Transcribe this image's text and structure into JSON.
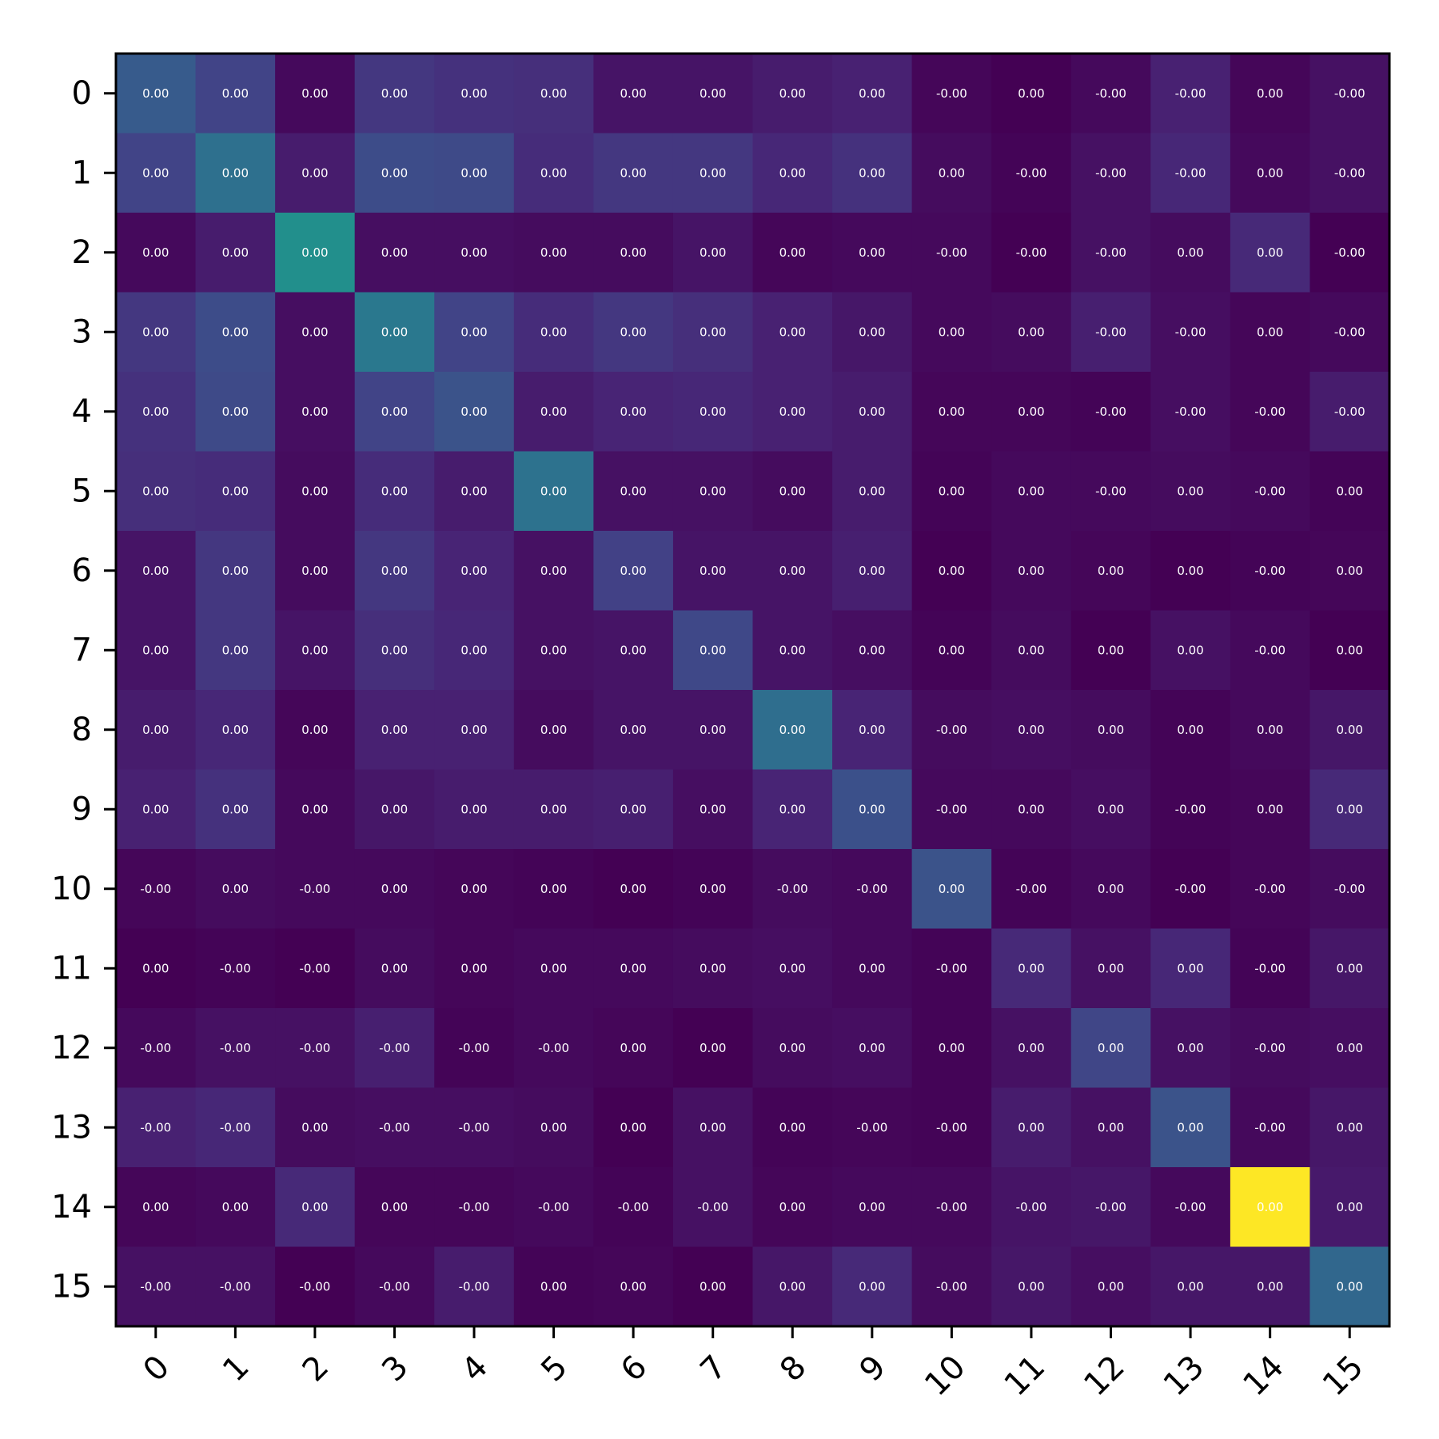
{
  "chart_data": {
    "type": "heatmap",
    "title": "",
    "xlabel": "",
    "ylabel": "",
    "x_ticks": [
      "0",
      "1",
      "2",
      "3",
      "4",
      "5",
      "6",
      "7",
      "8",
      "9",
      "10",
      "11",
      "12",
      "13",
      "14",
      "15"
    ],
    "y_ticks": [
      "0",
      "1",
      "2",
      "3",
      "4",
      "5",
      "6",
      "7",
      "8",
      "9",
      "10",
      "11",
      "12",
      "13",
      "14",
      "15"
    ],
    "colormap": "viridis",
    "color_intensity": [
      [
        0.36,
        0.25,
        0.03,
        0.2,
        0.18,
        0.17,
        0.07,
        0.07,
        0.1,
        0.12,
        0.02,
        0.0,
        0.03,
        0.12,
        0.02,
        0.06
      ],
      [
        0.25,
        0.46,
        0.1,
        0.29,
        0.28,
        0.16,
        0.2,
        0.2,
        0.14,
        0.18,
        0.04,
        0.01,
        0.06,
        0.14,
        0.03,
        0.06
      ],
      [
        0.03,
        0.1,
        0.62,
        0.05,
        0.05,
        0.04,
        0.04,
        0.07,
        0.02,
        0.03,
        0.03,
        0.0,
        0.06,
        0.04,
        0.15,
        0.0
      ],
      [
        0.2,
        0.29,
        0.05,
        0.5,
        0.25,
        0.16,
        0.2,
        0.17,
        0.12,
        0.08,
        0.03,
        0.04,
        0.11,
        0.05,
        0.02,
        0.03
      ],
      [
        0.18,
        0.28,
        0.05,
        0.25,
        0.32,
        0.1,
        0.13,
        0.14,
        0.12,
        0.1,
        0.02,
        0.02,
        0.01,
        0.05,
        0.02,
        0.1
      ],
      [
        0.17,
        0.16,
        0.04,
        0.16,
        0.1,
        0.47,
        0.06,
        0.06,
        0.04,
        0.1,
        0.01,
        0.03,
        0.03,
        0.04,
        0.03,
        0.01
      ],
      [
        0.07,
        0.2,
        0.04,
        0.2,
        0.13,
        0.06,
        0.24,
        0.07,
        0.07,
        0.11,
        0.0,
        0.03,
        0.02,
        0.0,
        0.01,
        0.02
      ],
      [
        0.07,
        0.2,
        0.07,
        0.17,
        0.14,
        0.06,
        0.07,
        0.27,
        0.07,
        0.05,
        0.01,
        0.04,
        0.0,
        0.06,
        0.03,
        0.0
      ],
      [
        0.1,
        0.14,
        0.02,
        0.12,
        0.12,
        0.04,
        0.07,
        0.07,
        0.45,
        0.13,
        0.04,
        0.05,
        0.04,
        0.01,
        0.03,
        0.08
      ],
      [
        0.12,
        0.18,
        0.03,
        0.08,
        0.1,
        0.1,
        0.11,
        0.05,
        0.13,
        0.31,
        0.03,
        0.03,
        0.05,
        0.01,
        0.02,
        0.15
      ],
      [
        0.02,
        0.04,
        0.03,
        0.03,
        0.02,
        0.01,
        0.0,
        0.01,
        0.04,
        0.03,
        0.32,
        0.01,
        0.03,
        0.0,
        0.02,
        0.04
      ],
      [
        0.0,
        0.01,
        0.0,
        0.04,
        0.02,
        0.03,
        0.03,
        0.04,
        0.05,
        0.03,
        0.01,
        0.15,
        0.06,
        0.14,
        0.01,
        0.08
      ],
      [
        0.03,
        0.06,
        0.06,
        0.11,
        0.01,
        0.03,
        0.02,
        0.0,
        0.04,
        0.05,
        0.01,
        0.06,
        0.26,
        0.06,
        0.04,
        0.05
      ],
      [
        0.12,
        0.14,
        0.04,
        0.05,
        0.05,
        0.04,
        0.0,
        0.06,
        0.01,
        0.02,
        0.01,
        0.1,
        0.06,
        0.32,
        0.03,
        0.08
      ],
      [
        0.02,
        0.03,
        0.15,
        0.02,
        0.02,
        0.03,
        0.01,
        0.06,
        0.02,
        0.03,
        0.03,
        0.07,
        0.08,
        0.03,
        1.0,
        0.09
      ],
      [
        0.06,
        0.06,
        0.0,
        0.03,
        0.1,
        0.01,
        0.02,
        0.0,
        0.08,
        0.15,
        0.04,
        0.08,
        0.05,
        0.08,
        0.08,
        0.42
      ]
    ],
    "cell_labels": [
      [
        "0.00",
        "0.00",
        "0.00",
        "0.00",
        "0.00",
        "0.00",
        "0.00",
        "0.00",
        "0.00",
        "0.00",
        "-0.00",
        "0.00",
        "-0.00",
        "-0.00",
        "0.00",
        "-0.00"
      ],
      [
        "0.00",
        "0.00",
        "0.00",
        "0.00",
        "0.00",
        "0.00",
        "0.00",
        "0.00",
        "0.00",
        "0.00",
        "0.00",
        "-0.00",
        "-0.00",
        "-0.00",
        "0.00",
        "-0.00"
      ],
      [
        "0.00",
        "0.00",
        "0.00",
        "0.00",
        "0.00",
        "0.00",
        "0.00",
        "0.00",
        "0.00",
        "0.00",
        "-0.00",
        "-0.00",
        "-0.00",
        "0.00",
        "0.00",
        "-0.00"
      ],
      [
        "0.00",
        "0.00",
        "0.00",
        "0.00",
        "0.00",
        "0.00",
        "0.00",
        "0.00",
        "0.00",
        "0.00",
        "0.00",
        "0.00",
        "-0.00",
        "-0.00",
        "0.00",
        "-0.00"
      ],
      [
        "0.00",
        "0.00",
        "0.00",
        "0.00",
        "0.00",
        "0.00",
        "0.00",
        "0.00",
        "0.00",
        "0.00",
        "0.00",
        "0.00",
        "-0.00",
        "-0.00",
        "-0.00",
        "-0.00"
      ],
      [
        "0.00",
        "0.00",
        "0.00",
        "0.00",
        "0.00",
        "0.00",
        "0.00",
        "0.00",
        "0.00",
        "0.00",
        "0.00",
        "0.00",
        "-0.00",
        "0.00",
        "-0.00",
        "0.00"
      ],
      [
        "0.00",
        "0.00",
        "0.00",
        "0.00",
        "0.00",
        "0.00",
        "0.00",
        "0.00",
        "0.00",
        "0.00",
        "0.00",
        "0.00",
        "0.00",
        "0.00",
        "-0.00",
        "0.00"
      ],
      [
        "0.00",
        "0.00",
        "0.00",
        "0.00",
        "0.00",
        "0.00",
        "0.00",
        "0.00",
        "0.00",
        "0.00",
        "0.00",
        "0.00",
        "0.00",
        "0.00",
        "-0.00",
        "0.00"
      ],
      [
        "0.00",
        "0.00",
        "0.00",
        "0.00",
        "0.00",
        "0.00",
        "0.00",
        "0.00",
        "0.00",
        "0.00",
        "-0.00",
        "0.00",
        "0.00",
        "0.00",
        "0.00",
        "0.00"
      ],
      [
        "0.00",
        "0.00",
        "0.00",
        "0.00",
        "0.00",
        "0.00",
        "0.00",
        "0.00",
        "0.00",
        "0.00",
        "-0.00",
        "0.00",
        "0.00",
        "-0.00",
        "0.00",
        "0.00"
      ],
      [
        "-0.00",
        "0.00",
        "-0.00",
        "0.00",
        "0.00",
        "0.00",
        "0.00",
        "0.00",
        "-0.00",
        "-0.00",
        "0.00",
        "-0.00",
        "0.00",
        "-0.00",
        "-0.00",
        "-0.00"
      ],
      [
        "0.00",
        "-0.00",
        "-0.00",
        "0.00",
        "0.00",
        "0.00",
        "0.00",
        "0.00",
        "0.00",
        "0.00",
        "-0.00",
        "0.00",
        "0.00",
        "0.00",
        "-0.00",
        "0.00"
      ],
      [
        "-0.00",
        "-0.00",
        "-0.00",
        "-0.00",
        "-0.00",
        "-0.00",
        "0.00",
        "0.00",
        "0.00",
        "0.00",
        "0.00",
        "0.00",
        "0.00",
        "0.00",
        "-0.00",
        "0.00"
      ],
      [
        "-0.00",
        "-0.00",
        "0.00",
        "-0.00",
        "-0.00",
        "0.00",
        "0.00",
        "0.00",
        "0.00",
        "-0.00",
        "-0.00",
        "0.00",
        "0.00",
        "0.00",
        "-0.00",
        "0.00"
      ],
      [
        "0.00",
        "0.00",
        "0.00",
        "0.00",
        "-0.00",
        "-0.00",
        "-0.00",
        "-0.00",
        "0.00",
        "0.00",
        "-0.00",
        "-0.00",
        "-0.00",
        "-0.00",
        "0.00",
        "0.00"
      ],
      [
        "-0.00",
        "-0.00",
        "-0.00",
        "-0.00",
        "-0.00",
        "0.00",
        "0.00",
        "0.00",
        "0.00",
        "0.00",
        "-0.00",
        "0.00",
        "0.00",
        "0.00",
        "0.00",
        "0.00"
      ]
    ],
    "grid": false,
    "legend": "none"
  }
}
